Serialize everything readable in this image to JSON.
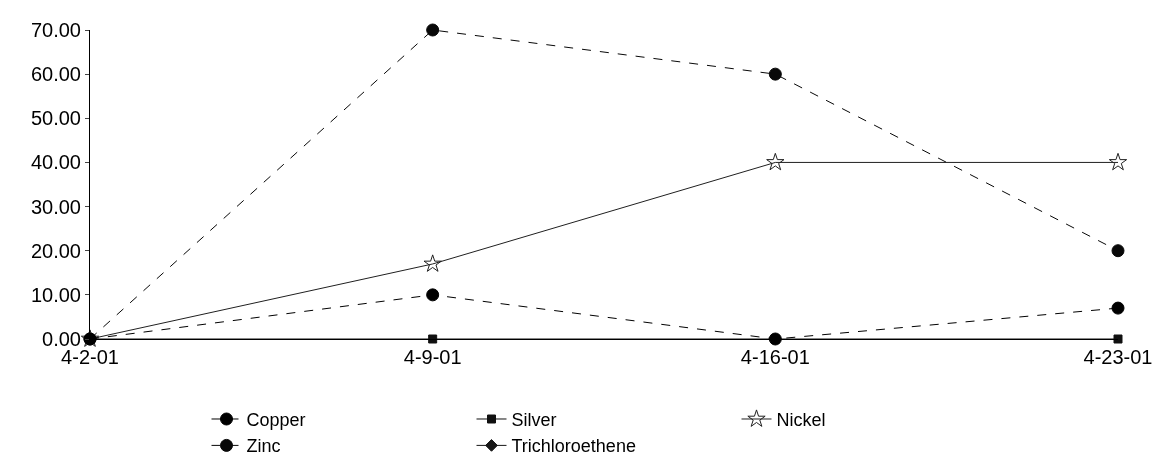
{
  "chart_data": {
    "type": "line",
    "categories": [
      "4-2-01",
      "4-9-01",
      "4-16-01",
      "4-23-01"
    ],
    "series": [
      {
        "name": "Copper",
        "color": "#000000",
        "values": [
          0,
          10,
          0,
          7
        ],
        "marker": "circle",
        "line_style": "dashed"
      },
      {
        "name": "Silver",
        "color": "#101010",
        "values": [
          0,
          0,
          0,
          0
        ],
        "marker": "square",
        "line_style": "solid"
      },
      {
        "name": "Nickel",
        "color": "#202020",
        "values": [
          0,
          17,
          40,
          40
        ],
        "marker": "star",
        "line_style": "solid"
      },
      {
        "name": "Zinc",
        "color": "#080808",
        "values": [
          0,
          70,
          60,
          20
        ],
        "marker": "circle",
        "line_style": "dashed"
      },
      {
        "name": "Trichloroethene",
        "color": "#181818",
        "values": [
          null,
          null,
          null,
          null
        ],
        "marker": "diamond",
        "line_style": "solid"
      }
    ],
    "ylim": [
      0,
      70
    ],
    "yticks": [
      {
        "value": 0,
        "label": "0.00"
      },
      {
        "value": 10,
        "label": "10.00"
      },
      {
        "value": 20,
        "label": "20.00"
      },
      {
        "value": 30,
        "label": "30.00"
      },
      {
        "value": 40,
        "label": "40.00"
      },
      {
        "value": 50,
        "label": "50.00"
      },
      {
        "value": 60,
        "label": "60.00"
      },
      {
        "value": 70,
        "label": "70.00"
      }
    ],
    "grid": false,
    "legend": "bottom"
  }
}
